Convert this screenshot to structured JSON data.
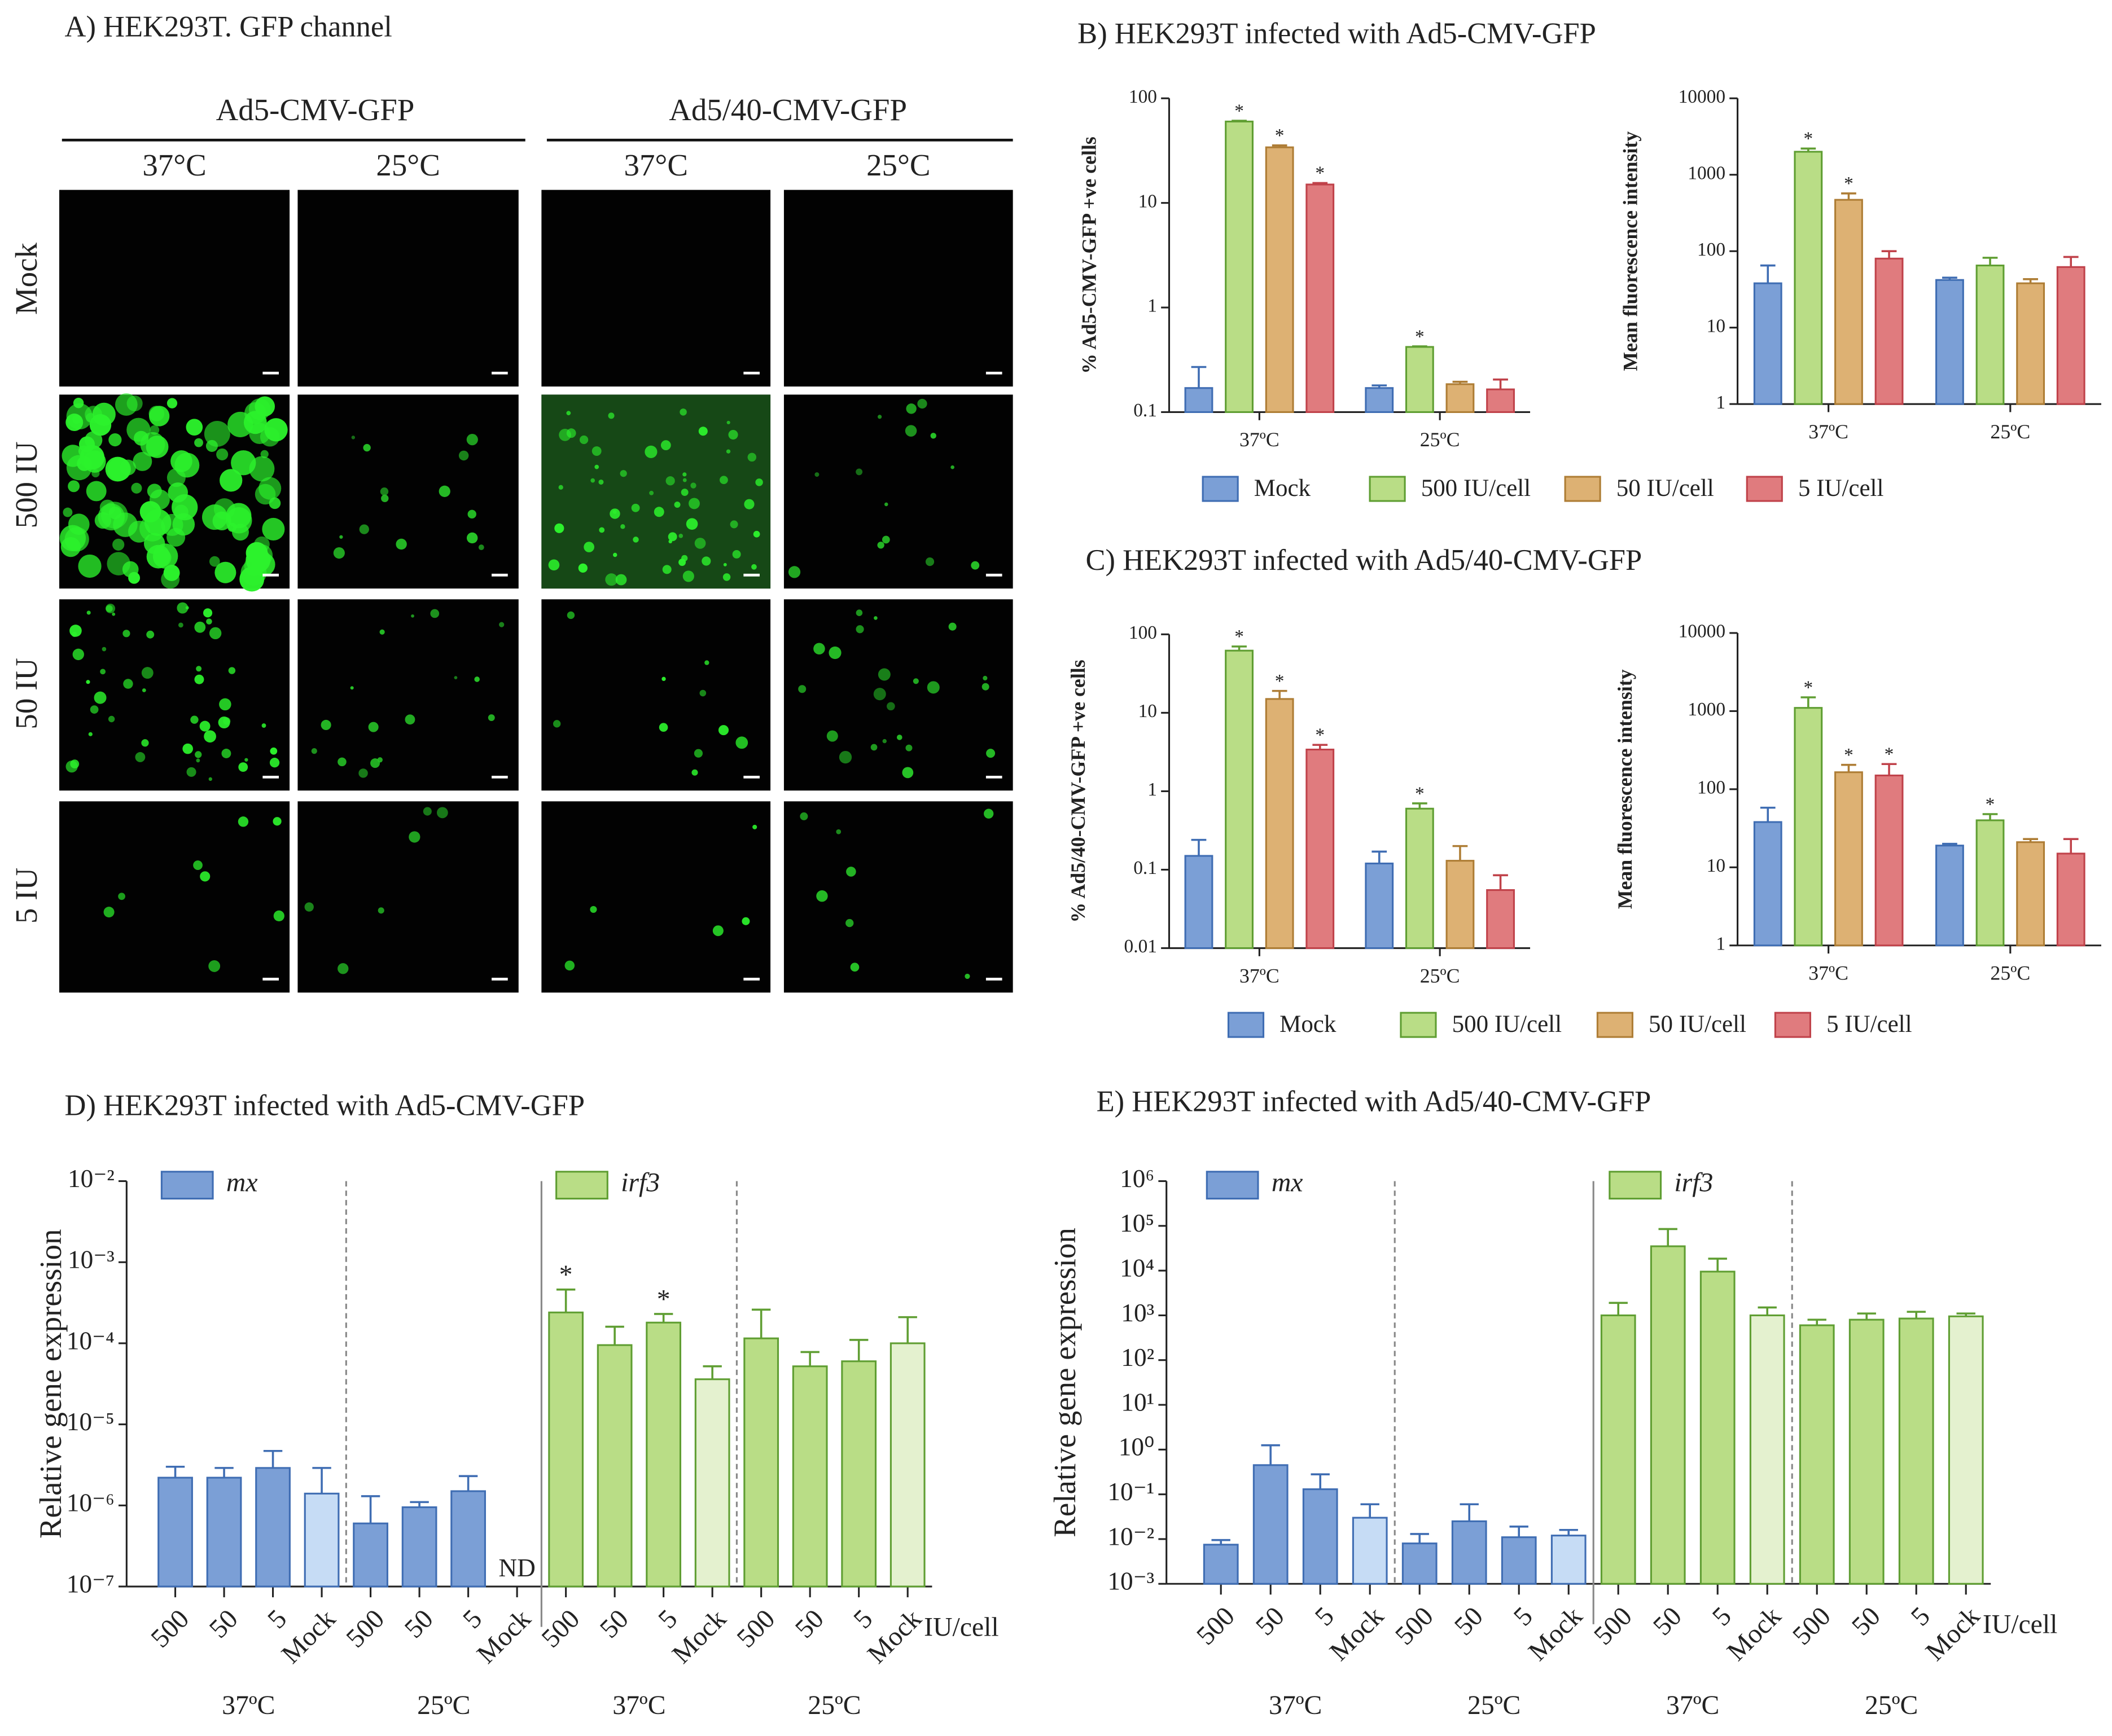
{
  "panel_a": {
    "title": "A) HEK293T. GFP channel",
    "groups": [
      "Ad5-CMV-GFP",
      "Ad5/40-CMV-GFP"
    ],
    "temperatures": [
      "37°C",
      "25°C",
      "37°C",
      "25°C"
    ],
    "rows": [
      "Mock",
      "500 IU",
      "50 IU",
      "5 IU"
    ]
  },
  "chart_data": [
    {
      "type": "bar",
      "title": "B) HEK293T infected with Ad5-CMV-GFP",
      "ylabel": "% Ad5-CMV-GFP +ve cells",
      "yscale": "log",
      "ylim": [
        0.1,
        100
      ],
      "yticks": [
        0.1,
        1,
        10,
        100
      ],
      "categories": [
        "37ºC",
        "25ºC"
      ],
      "series": [
        {
          "name": "Mock",
          "color": "#7b9fd6",
          "edge_color": "#3f6db3",
          "values": [
            0.17,
            0.17
          ],
          "errors": [
            0.1,
            0.01
          ]
        },
        {
          "name": "500 IU/cell",
          "color": "#b9dd86",
          "edge_color": "#5f9e32",
          "values": [
            60,
            0.42
          ],
          "errors": [
            1,
            0.005
          ],
          "annotations": [
            "*",
            "*"
          ]
        },
        {
          "name": "50 IU/cell",
          "color": "#ddb173",
          "edge_color": "#ae7d35",
          "values": [
            34,
            0.185
          ],
          "errors": [
            1.5,
            0.01
          ],
          "annotations": [
            "*",
            null
          ]
        },
        {
          "name": "5 IU/cell",
          "color": "#e07b7e",
          "edge_color": "#c0424a",
          "values": [
            15,
            0.165
          ],
          "errors": [
            0.5,
            0.04
          ],
          "annotations": [
            "*",
            null
          ]
        }
      ]
    },
    {
      "type": "bar",
      "ylabel": "Mean fluorescence intensity",
      "yscale": "log",
      "ylim": [
        1,
        10000
      ],
      "yticks": [
        1,
        10,
        100,
        1000,
        10000
      ],
      "categories": [
        "37ºC",
        "25ºC"
      ],
      "series": [
        {
          "color": "#7b9fd6",
          "edge_color": "#3f6db3",
          "values": [
            38,
            42
          ],
          "errors": [
            27,
            3
          ]
        },
        {
          "color": "#b9dd86",
          "edge_color": "#5f9e32",
          "values": [
            2000,
            65
          ],
          "errors": [
            200,
            17
          ],
          "annotations": [
            "*",
            null
          ]
        },
        {
          "color": "#ddb173",
          "edge_color": "#ae7d35",
          "values": [
            470,
            38
          ],
          "errors": [
            100,
            5
          ],
          "annotations": [
            "*",
            null
          ]
        },
        {
          "color": "#e07b7e",
          "edge_color": "#c0424a",
          "values": [
            80,
            62
          ],
          "errors": [
            20,
            22
          ]
        }
      ]
    },
    {
      "type": "bar",
      "title": "C) HEK293T infected with Ad5/40-CMV-GFP",
      "ylabel": "% Ad5/40-CMV-GFP +ve cells",
      "yscale": "log",
      "ylim": [
        0.01,
        100
      ],
      "yticks": [
        0.01,
        0.1,
        1,
        10,
        100
      ],
      "categories": [
        "37ºC",
        "25ºC"
      ],
      "series": [
        {
          "name": "Mock",
          "color": "#7b9fd6",
          "edge_color": "#3f6db3",
          "values": [
            0.15,
            0.12
          ],
          "errors": [
            0.09,
            0.05
          ]
        },
        {
          "name": "500 IU/cell",
          "color": "#b9dd86",
          "edge_color": "#5f9e32",
          "values": [
            62,
            0.6
          ],
          "errors": [
            8,
            0.1
          ],
          "annotations": [
            "*",
            "*"
          ]
        },
        {
          "name": "50 IU/cell",
          "color": "#ddb173",
          "edge_color": "#ae7d35",
          "values": [
            15,
            0.13
          ],
          "errors": [
            4,
            0.07
          ],
          "annotations": [
            "*",
            null
          ]
        },
        {
          "name": "5 IU/cell",
          "color": "#e07b7e",
          "edge_color": "#c0424a",
          "values": [
            3.4,
            0.055
          ],
          "errors": [
            0.5,
            0.03
          ],
          "annotations": [
            "*",
            null
          ]
        }
      ]
    },
    {
      "type": "bar",
      "ylabel": "Mean fluorescence intensity",
      "yscale": "log",
      "ylim": [
        1,
        10000
      ],
      "yticks": [
        1,
        10,
        100,
        1000,
        10000
      ],
      "categories": [
        "37ºC",
        "25ºC"
      ],
      "series": [
        {
          "color": "#7b9fd6",
          "edge_color": "#3f6db3",
          "values": [
            38,
            19
          ],
          "errors": [
            20,
            1
          ]
        },
        {
          "color": "#b9dd86",
          "edge_color": "#5f9e32",
          "values": [
            1100,
            40
          ],
          "errors": [
            400,
            8
          ],
          "annotations": [
            "*",
            "*"
          ]
        },
        {
          "color": "#ddb173",
          "edge_color": "#ae7d35",
          "values": [
            165,
            21
          ],
          "errors": [
            40,
            2
          ],
          "annotations": [
            "*",
            null
          ]
        },
        {
          "color": "#e07b7e",
          "edge_color": "#c0424a",
          "values": [
            150,
            15
          ],
          "errors": [
            60,
            8
          ],
          "annotations": [
            "*",
            null
          ]
        }
      ]
    },
    {
      "type": "bar",
      "title": "D) HEK293T infected with Ad5-CMV-GFP",
      "ylabel": "Relative gene expression",
      "xlabel": "IU/cell",
      "yscale": "log",
      "ylim": [
        1e-07,
        0.01
      ],
      "yticks": [
        {
          "value": 1e-07,
          "label": "10⁻⁷"
        },
        {
          "value": 1e-06,
          "label": "10⁻⁶"
        },
        {
          "value": 1e-05,
          "label": "10⁻⁵"
        },
        {
          "value": 0.0001,
          "label": "10⁻⁴"
        },
        {
          "value": 0.001,
          "label": "10⁻³"
        },
        {
          "value": 0.01,
          "label": "10⁻²"
        }
      ],
      "categories": [
        "500",
        "50",
        "5",
        "Mock",
        "500",
        "50",
        "5",
        "Mock",
        "500",
        "50",
        "5",
        "Mock",
        "500",
        "50",
        "5",
        "Mock"
      ],
      "groups": [
        "37ºC",
        "25ºC",
        "37ºC",
        "25ºC"
      ],
      "series": [
        {
          "name": "mx",
          "color": "#7b9fd6",
          "mock_color": "#c6dcf5",
          "edge_color": "#3f6db3",
          "values": [
            2.2e-06,
            2.2e-06,
            2.9e-06,
            1.4e-06,
            6e-07,
            9.5e-07,
            1.5e-06,
            null,
            null,
            null,
            null,
            null,
            null,
            null,
            null,
            null
          ],
          "errors": [
            8e-07,
            7e-07,
            1.8e-06,
            1.5e-06,
            7e-07,
            1.5e-07,
            8e-07,
            null,
            null,
            null,
            null,
            null,
            null,
            null,
            null,
            null
          ],
          "annotations": [
            null,
            null,
            null,
            null,
            null,
            null,
            null,
            "ND",
            null,
            null,
            null,
            null,
            null,
            null,
            null,
            null
          ]
        },
        {
          "name": "irf3",
          "color": "#b9dd86",
          "mock_color": "#e4f1cf",
          "edge_color": "#5f9e32",
          "values": [
            null,
            null,
            null,
            null,
            null,
            null,
            null,
            null,
            0.00024,
            9.5e-05,
            0.00018,
            3.6e-05,
            0.000115,
            5.2e-05,
            6e-05,
            0.0001
          ],
          "errors": [
            null,
            null,
            null,
            null,
            null,
            null,
            null,
            null,
            0.00022,
            6.5e-05,
            5e-05,
            1.6e-05,
            0.000145,
            2.6e-05,
            5e-05,
            0.00011
          ],
          "annotations": [
            null,
            null,
            null,
            null,
            null,
            null,
            null,
            null,
            "*",
            null,
            "*",
            null,
            null,
            null,
            null,
            null
          ]
        }
      ]
    },
    {
      "type": "bar",
      "title": "E) HEK293T infected with Ad5/40-CMV-GFP",
      "ylabel": "Relative gene expression",
      "xlabel": "IU/cell",
      "yscale": "log",
      "ylim": [
        0.001,
        1000000
      ],
      "yticks": [
        {
          "value": 0.001,
          "label": "10⁻³"
        },
        {
          "value": 0.01,
          "label": "10⁻²"
        },
        {
          "value": 0.1,
          "label": "10⁻¹"
        },
        {
          "value": 1,
          "label": "10⁰"
        },
        {
          "value": 10,
          "label": "10¹"
        },
        {
          "value": 100,
          "label": "10²"
        },
        {
          "value": 1000,
          "label": "10³"
        },
        {
          "value": 10000,
          "label": "10⁴"
        },
        {
          "value": 100000,
          "label": "10⁵"
        },
        {
          "value": 1000000,
          "label": "10⁶"
        }
      ],
      "categories": [
        "500",
        "50",
        "5",
        "Mock",
        "500",
        "50",
        "5",
        "Mock",
        "500",
        "50",
        "5",
        "Mock",
        "500",
        "50",
        "5",
        "Mock"
      ],
      "groups": [
        "37ºC",
        "25ºC",
        "37ºC",
        "25ºC"
      ],
      "series": [
        {
          "name": "mx",
          "color": "#7b9fd6",
          "mock_color": "#c6dcf5",
          "edge_color": "#3f6db3",
          "values": [
            0.0075,
            0.45,
            0.13,
            0.03,
            0.008,
            0.025,
            0.011,
            0.012,
            null,
            null,
            null,
            null,
            null,
            null,
            null,
            null
          ],
          "errors": [
            0.002,
            0.8,
            0.15,
            0.03,
            0.005,
            0.035,
            0.008,
            0.004,
            null,
            null,
            null,
            null,
            null,
            null,
            null,
            null
          ]
        },
        {
          "name": "irf3",
          "color": "#b9dd86",
          "mock_color": "#e4f1cf",
          "edge_color": "#5f9e32",
          "values": [
            null,
            null,
            null,
            null,
            null,
            null,
            null,
            null,
            1000,
            35000,
            9500,
            1000,
            600,
            800,
            850,
            950
          ],
          "errors": [
            null,
            null,
            null,
            null,
            null,
            null,
            null,
            null,
            900,
            50000,
            9000,
            500,
            200,
            300,
            350,
            150
          ]
        }
      ]
    }
  ]
}
